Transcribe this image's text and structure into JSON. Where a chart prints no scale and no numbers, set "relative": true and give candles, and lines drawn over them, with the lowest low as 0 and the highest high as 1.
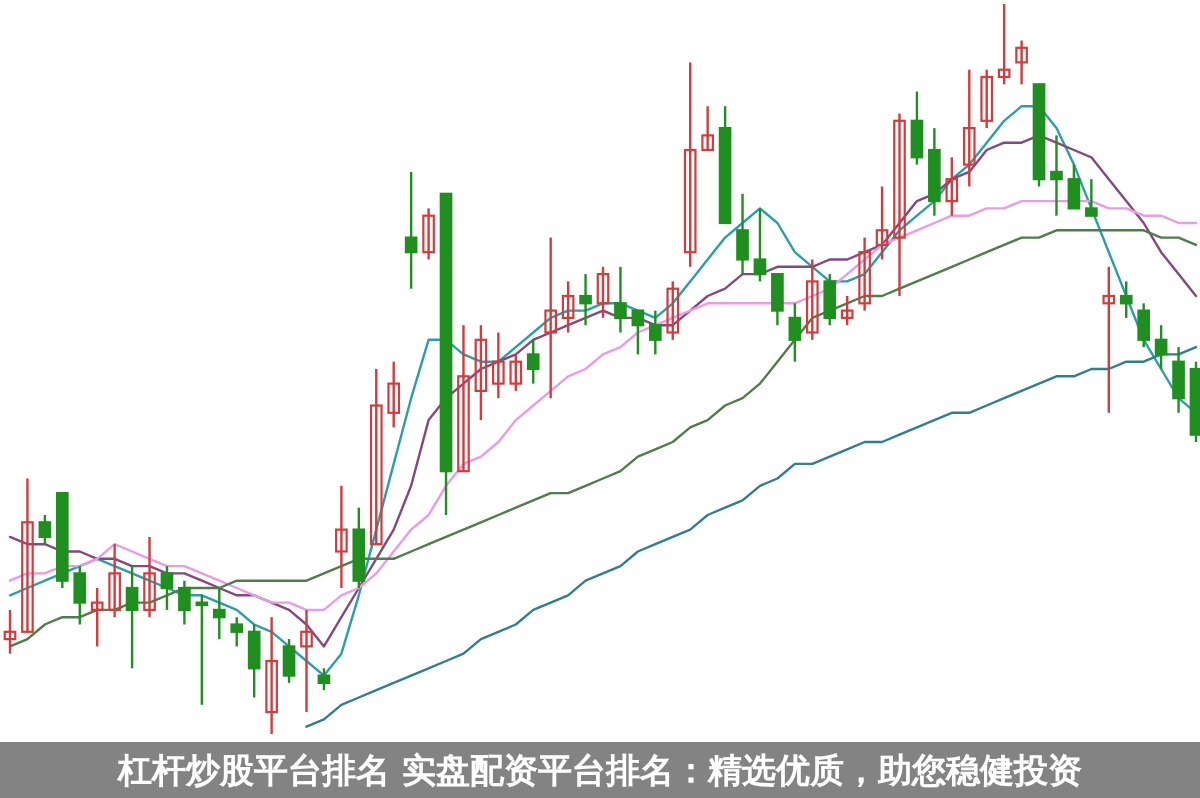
{
  "chart_data": {
    "type": "candlestick",
    "title": "杠杆炒股平台排名 实盘配资平台排名：精选优质，助您稳健投资",
    "relative": true,
    "categories": [
      null,
      null,
      null,
      null,
      null,
      null,
      null,
      null,
      null,
      null,
      null,
      null,
      null,
      null,
      null,
      null,
      null,
      null,
      null,
      null,
      null,
      null,
      null,
      null,
      null,
      null,
      null,
      null,
      null,
      null,
      null,
      null,
      null,
      null,
      null,
      null,
      null,
      null,
      null,
      null,
      null,
      null,
      null,
      null,
      null,
      null,
      null,
      null,
      null,
      null,
      null,
      null,
      null,
      null,
      null,
      null,
      null,
      null,
      null,
      null,
      null,
      null,
      null,
      null,
      null,
      null,
      null,
      null,
      null
    ],
    "ohlc": [
      [
        0.13,
        0.17,
        0.11,
        0.14
      ],
      [
        0.14,
        0.35,
        0.14,
        0.29
      ],
      [
        0.29,
        0.3,
        0.26,
        0.27
      ],
      [
        0.33,
        0.33,
        0.2,
        0.21
      ],
      [
        0.22,
        0.23,
        0.15,
        0.18
      ],
      [
        0.17,
        0.2,
        0.12,
        0.18
      ],
      [
        0.17,
        0.26,
        0.16,
        0.22
      ],
      [
        0.2,
        0.23,
        0.09,
        0.17
      ],
      [
        0.17,
        0.27,
        0.16,
        0.22
      ],
      [
        0.22,
        0.23,
        0.17,
        0.2
      ],
      [
        0.2,
        0.21,
        0.15,
        0.17
      ],
      [
        0.18,
        0.19,
        0.04,
        0.18
      ],
      [
        0.17,
        0.2,
        0.13,
        0.16
      ],
      [
        0.15,
        0.16,
        0.12,
        0.14
      ],
      [
        0.14,
        0.15,
        0.05,
        0.09
      ],
      [
        0.03,
        0.16,
        0,
        0.1
      ],
      [
        0.12,
        0.13,
        0.07,
        0.08
      ],
      [
        0.12,
        0.17,
        0.03,
        0.14
      ],
      [
        0.08,
        0.09,
        0.06,
        0.07
      ],
      [
        0.25,
        0.34,
        0.2,
        0.28
      ],
      [
        0.28,
        0.31,
        0.2,
        0.21
      ],
      [
        0.26,
        0.5,
        0.26,
        0.45
      ],
      [
        0.44,
        0.51,
        0.42,
        0.48
      ],
      [
        0.68,
        0.77,
        0.61,
        0.66
      ],
      [
        0.66,
        0.72,
        0.65,
        0.71
      ],
      [
        0.74,
        0.74,
        0.3,
        0.36
      ],
      [
        0.36,
        0.56,
        0.36,
        0.49
      ],
      [
        0.47,
        0.56,
        0.43,
        0.54
      ],
      [
        0.48,
        0.55,
        0.46,
        0.51
      ],
      [
        0.48,
        0.52,
        0.47,
        0.51
      ],
      [
        0.52,
        0.54,
        0.48,
        0.5
      ],
      [
        0.55,
        0.68,
        0.46,
        0.58
      ],
      [
        0.57,
        0.62,
        0.55,
        0.6
      ],
      [
        0.6,
        0.63,
        0.56,
        0.59
      ],
      [
        0.59,
        0.64,
        0.57,
        0.63
      ],
      [
        0.59,
        0.64,
        0.55,
        0.57
      ],
      [
        0.58,
        0.58,
        0.52,
        0.56
      ],
      [
        0.56,
        0.58,
        0.52,
        0.54
      ],
      [
        0.55,
        0.62,
        0.54,
        0.61
      ],
      [
        0.66,
        0.92,
        0.64,
        0.8
      ],
      [
        0.8,
        0.86,
        0.8,
        0.82
      ],
      [
        0.83,
        0.86,
        0.7,
        0.7
      ],
      [
        0.69,
        0.74,
        0.63,
        0.65
      ],
      [
        0.65,
        0.72,
        0.62,
        0.63
      ],
      [
        0.63,
        0.63,
        0.56,
        0.58
      ],
      [
        0.57,
        0.59,
        0.51,
        0.54
      ],
      [
        0.55,
        0.65,
        0.54,
        0.62
      ],
      [
        0.62,
        0.63,
        0.56,
        0.57
      ],
      [
        0.57,
        0.6,
        0.56,
        0.58
      ],
      [
        0.59,
        0.68,
        0.58,
        0.66
      ],
      [
        0.67,
        0.75,
        0.65,
        0.69
      ],
      [
        0.68,
        0.85,
        0.6,
        0.84
      ],
      [
        0.84,
        0.88,
        0.78,
        0.79
      ],
      [
        0.8,
        0.83,
        0.71,
        0.73
      ],
      [
        0.73,
        0.79,
        0.71,
        0.76
      ],
      [
        0.78,
        0.91,
        0.75,
        0.83
      ],
      [
        0.84,
        0.91,
        0.83,
        0.9
      ],
      [
        0.9,
        1,
        0.89,
        0.91
      ],
      [
        0.92,
        0.95,
        0.89,
        0.94
      ],
      [
        0.89,
        0.89,
        0.75,
        0.76
      ],
      [
        0.77,
        0.82,
        0.71,
        0.76
      ],
      [
        0.76,
        0.78,
        0.72,
        0.72
      ],
      [
        0.72,
        0.76,
        0.71,
        0.71
      ],
      [
        0.59,
        0.64,
        0.44,
        0.6
      ],
      [
        0.6,
        0.62,
        0.57,
        0.59
      ],
      [
        0.58,
        0.59,
        0.53,
        0.54
      ],
      [
        0.54,
        0.56,
        0.5,
        0.52
      ],
      [
        0.51,
        0.53,
        0.44,
        0.46
      ],
      [
        0.5,
        0.51,
        0.4,
        0.41
      ]
    ],
    "colors": [
      "#d23c3c",
      "#d23c3c",
      "#1f8f1f",
      "#1f8f1f",
      "#1f8f1f",
      "#d23c3c",
      "#d23c3c",
      "#1f8f1f",
      "#d23c3c",
      "#1f8f1f",
      "#1f8f1f",
      "#1f8f1f",
      "#1f8f1f",
      "#1f8f1f",
      "#1f8f1f",
      "#d23c3c",
      "#1f8f1f",
      "#d23c3c",
      "#1f8f1f",
      "#d23c3c",
      "#1f8f1f",
      "#d23c3c",
      "#d23c3c",
      "#1f8f1f",
      "#d23c3c",
      "#1f8f1f",
      "#d23c3c",
      "#d23c3c",
      "#d23c3c",
      "#d23c3c",
      "#1f8f1f",
      "#d23c3c",
      "#d23c3c",
      "#1f8f1f",
      "#d23c3c",
      "#1f8f1f",
      "#1f8f1f",
      "#1f8f1f",
      "#d23c3c",
      "#d23c3c",
      "#d23c3c",
      "#1f8f1f",
      "#1f8f1f",
      "#1f8f1f",
      "#1f8f1f",
      "#1f8f1f",
      "#d23c3c",
      "#1f8f1f",
      "#d23c3c",
      "#d23c3c",
      "#d23c3c",
      "#d23c3c",
      "#1f8f1f",
      "#1f8f1f",
      "#d23c3c",
      "#d23c3c",
      "#d23c3c",
      "#d23c3c",
      "#d23c3c",
      "#1f8f1f",
      "#1f8f1f",
      "#1f8f1f",
      "#1f8f1f",
      "#d23c3c",
      "#1f8f1f",
      "#1f8f1f",
      "#1f8f1f",
      "#1f8f1f",
      "#1f8f1f"
    ],
    "series": [
      {
        "type": "line",
        "color": "#2a9fa8",
        "values": [
          0.19,
          0.2,
          0.21,
          0.22,
          0.23,
          0.24,
          0.23,
          0.22,
          0.21,
          0.2,
          0.19,
          0.19,
          0.18,
          0.17,
          0.15,
          0.14,
          0.12,
          0.1,
          0.08,
          0.11,
          0.19,
          0.28,
          0.37,
          0.46,
          0.54,
          0.54,
          0.52,
          0.51,
          0.51,
          0.53,
          0.55,
          0.57,
          0.58,
          0.58,
          0.59,
          0.59,
          0.58,
          0.57,
          0.59,
          0.62,
          0.65,
          0.68,
          0.7,
          0.72,
          0.7,
          0.66,
          0.64,
          0.62,
          0.62,
          0.63,
          0.66,
          0.69,
          0.71,
          0.73,
          0.76,
          0.78,
          0.81,
          0.84,
          0.86,
          0.86,
          0.83,
          0.78,
          0.72,
          0.66,
          0.6,
          0.54,
          0.5,
          0.46,
          0.44
        ]
      },
      {
        "type": "line",
        "color": "#84487f",
        "values": [
          0.27,
          0.26,
          0.26,
          0.25,
          0.25,
          0.24,
          0.24,
          0.23,
          0.23,
          0.22,
          0.22,
          0.21,
          0.2,
          0.19,
          0.19,
          0.18,
          0.17,
          0.15,
          0.12,
          0.16,
          0.2,
          0.24,
          0.28,
          0.34,
          0.43,
          0.46,
          0.48,
          0.5,
          0.51,
          0.52,
          0.54,
          0.55,
          0.56,
          0.57,
          0.58,
          0.57,
          0.57,
          0.56,
          0.56,
          0.58,
          0.6,
          0.61,
          0.63,
          0.63,
          0.64,
          0.64,
          0.64,
          0.65,
          0.65,
          0.66,
          0.67,
          0.7,
          0.73,
          0.74,
          0.76,
          0.77,
          0.8,
          0.81,
          0.81,
          0.82,
          0.81,
          0.8,
          0.79,
          0.76,
          0.73,
          0.7,
          0.66,
          0.63,
          0.6
        ]
      },
      {
        "type": "line",
        "color": "#e99be6",
        "values": [
          0.21,
          0.22,
          0.22,
          0.23,
          0.23,
          0.24,
          0.26,
          0.25,
          0.24,
          0.23,
          0.23,
          0.22,
          0.21,
          0.2,
          0.19,
          0.18,
          0.18,
          0.17,
          0.17,
          0.19,
          0.2,
          0.22,
          0.25,
          0.28,
          0.3,
          0.34,
          0.37,
          0.38,
          0.4,
          0.43,
          0.45,
          0.47,
          0.49,
          0.5,
          0.52,
          0.53,
          0.55,
          0.56,
          0.57,
          0.58,
          0.59,
          0.59,
          0.59,
          0.59,
          0.59,
          0.59,
          0.6,
          0.61,
          0.63,
          0.65,
          0.67,
          0.68,
          0.69,
          0.7,
          0.71,
          0.71,
          0.72,
          0.72,
          0.73,
          0.73,
          0.73,
          0.73,
          0.73,
          0.72,
          0.72,
          0.71,
          0.71,
          0.7,
          0.7
        ]
      },
      {
        "type": "line",
        "color": "#4e7d48",
        "values": [
          0.12,
          0.13,
          0.15,
          0.16,
          0.16,
          0.17,
          0.17,
          0.18,
          0.18,
          0.19,
          0.2,
          0.2,
          0.2,
          0.21,
          0.21,
          0.21,
          0.21,
          0.21,
          0.22,
          0.23,
          0.24,
          0.24,
          0.24,
          0.25,
          0.26,
          0.27,
          0.28,
          0.29,
          0.3,
          0.31,
          0.32,
          0.33,
          0.33,
          0.34,
          0.35,
          0.36,
          0.38,
          0.39,
          0.4,
          0.42,
          0.43,
          0.45,
          0.46,
          0.48,
          0.51,
          0.54,
          0.57,
          0.58,
          0.59,
          0.6,
          0.6,
          0.61,
          0.62,
          0.63,
          0.64,
          0.65,
          0.66,
          0.67,
          0.68,
          0.68,
          0.69,
          0.69,
          0.69,
          0.69,
          0.69,
          0.69,
          0.68,
          0.68,
          0.67
        ]
      },
      {
        "type": "line",
        "color": "#2f7f8f",
        "values": [
          null,
          null,
          null,
          null,
          null,
          null,
          null,
          null,
          null,
          null,
          null,
          null,
          null,
          null,
          null,
          null,
          null,
          0.01,
          0.02,
          0.04,
          0.05,
          0.06,
          0.07,
          0.08,
          0.09,
          0.1,
          0.11,
          0.13,
          0.14,
          0.15,
          0.17,
          0.18,
          0.19,
          0.21,
          0.22,
          0.23,
          0.25,
          0.26,
          0.27,
          0.28,
          0.3,
          0.31,
          0.32,
          0.34,
          0.35,
          0.37,
          0.37,
          0.38,
          0.39,
          0.4,
          0.4,
          0.41,
          0.42,
          0.43,
          0.44,
          0.44,
          0.45,
          0.46,
          0.47,
          0.48,
          0.49,
          0.49,
          0.5,
          0.5,
          0.51,
          0.51,
          0.52,
          0.52,
          0.53
        ]
      }
    ]
  }
}
